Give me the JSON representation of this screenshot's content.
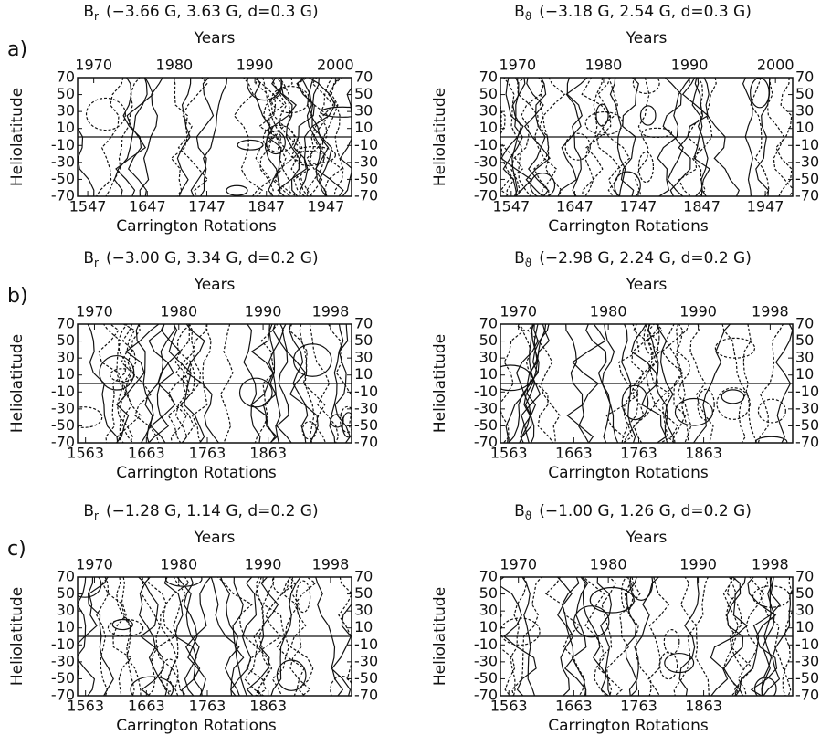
{
  "rows": [
    {
      "label": "a)",
      "plots": [
        {
          "symbol": "B",
          "subscript": "r",
          "range": "(−3.66 G, 3.63 G, d=0.3 G)",
          "top_label": "Years",
          "year_ticks": [
            1970,
            1980,
            1990,
            2000
          ],
          "year_lim": [
            1968,
            2002
          ],
          "rotation_ticks": [
            1547,
            1647,
            1747,
            1847,
            1947
          ],
          "rotation_lim": [
            1530,
            1990
          ],
          "xlabel": "Carrington Rotations",
          "ylabel": "Heliolatitude",
          "ylim": [
            -70,
            70
          ],
          "yticks": [
            70,
            50,
            30,
            10,
            -10,
            -30,
            -50,
            -70
          ]
        },
        {
          "symbol": "B",
          "subscript": "ϑ",
          "range": "(−3.18 G, 2.54 G, d=0.3 G)",
          "top_label": "Years",
          "year_ticks": [
            1970,
            1980,
            1990,
            2000
          ],
          "year_lim": [
            1968,
            2002
          ],
          "rotation_ticks": [
            1547,
            1647,
            1747,
            1847,
            1947
          ],
          "rotation_lim": [
            1530,
            1990
          ],
          "xlabel": "Carrington Rotations",
          "ylabel": "Heliolatitude",
          "ylim": [
            -70,
            70
          ],
          "yticks": [
            70,
            50,
            30,
            10,
            -10,
            -30,
            -50,
            -70
          ]
        }
      ]
    },
    {
      "label": "b)",
      "plots": [
        {
          "symbol": "B",
          "subscript": "r",
          "range": "(−3.00 G, 3.34 G, d=0.2 G)",
          "top_label": "Years",
          "year_ticks": [
            1970,
            1980,
            1990,
            1998
          ],
          "year_lim": [
            1968,
            2000.5
          ],
          "rotation_ticks": [
            1563,
            1663,
            1763,
            1863
          ],
          "rotation_lim": [
            1550,
            2000
          ],
          "xlabel": "Carrington Rotations",
          "ylabel": "Heliolatitude",
          "ylim": [
            -70,
            70
          ],
          "yticks": [
            70,
            50,
            30,
            10,
            -10,
            -30,
            -50,
            -70
          ]
        },
        {
          "symbol": "B",
          "subscript": "ϑ",
          "range": "(−2.98 G, 2.24 G, d=0.2 G)",
          "top_label": "Years",
          "year_ticks": [
            1970,
            1980,
            1990,
            1998
          ],
          "year_lim": [
            1968,
            2000.5
          ],
          "rotation_ticks": [
            1563,
            1663,
            1763,
            1863
          ],
          "rotation_lim": [
            1550,
            2000
          ],
          "xlabel": "Carrington Rotations",
          "ylabel": "Heliolatitude",
          "ylim": [
            -70,
            70
          ],
          "yticks": [
            70,
            50,
            30,
            10,
            -10,
            -30,
            -50,
            -70
          ]
        }
      ]
    },
    {
      "label": "c)",
      "plots": [
        {
          "symbol": "B",
          "subscript": "r",
          "range": "(−1.28 G, 1.14 G, d=0.2 G)",
          "top_label": "Years",
          "year_ticks": [
            1970,
            1980,
            1990,
            1998
          ],
          "year_lim": [
            1968,
            2000.5
          ],
          "rotation_ticks": [
            1563,
            1663,
            1763,
            1863
          ],
          "rotation_lim": [
            1550,
            2000
          ],
          "xlabel": "Carrington Rotations",
          "ylabel": "Heliolatitude",
          "ylim": [
            -70,
            70
          ],
          "yticks": [
            70,
            50,
            30,
            10,
            -10,
            -30,
            -50,
            -70
          ]
        },
        {
          "symbol": "B",
          "subscript": "ϑ",
          "range": "(−1.00 G, 1.26 G, d=0.2 G)",
          "top_label": "Years",
          "year_ticks": [
            1970,
            1980,
            1990,
            1998
          ],
          "year_lim": [
            1968,
            2000.5
          ],
          "rotation_ticks": [
            1563,
            1663,
            1763,
            1863
          ],
          "rotation_lim": [
            1550,
            2000
          ],
          "xlabel": "Carrington Rotations",
          "ylabel": "Heliolatitude",
          "ylim": [
            -70,
            70
          ],
          "yticks": [
            70,
            50,
            30,
            10,
            -10,
            -30,
            -50,
            -70
          ]
        }
      ]
    }
  ]
}
